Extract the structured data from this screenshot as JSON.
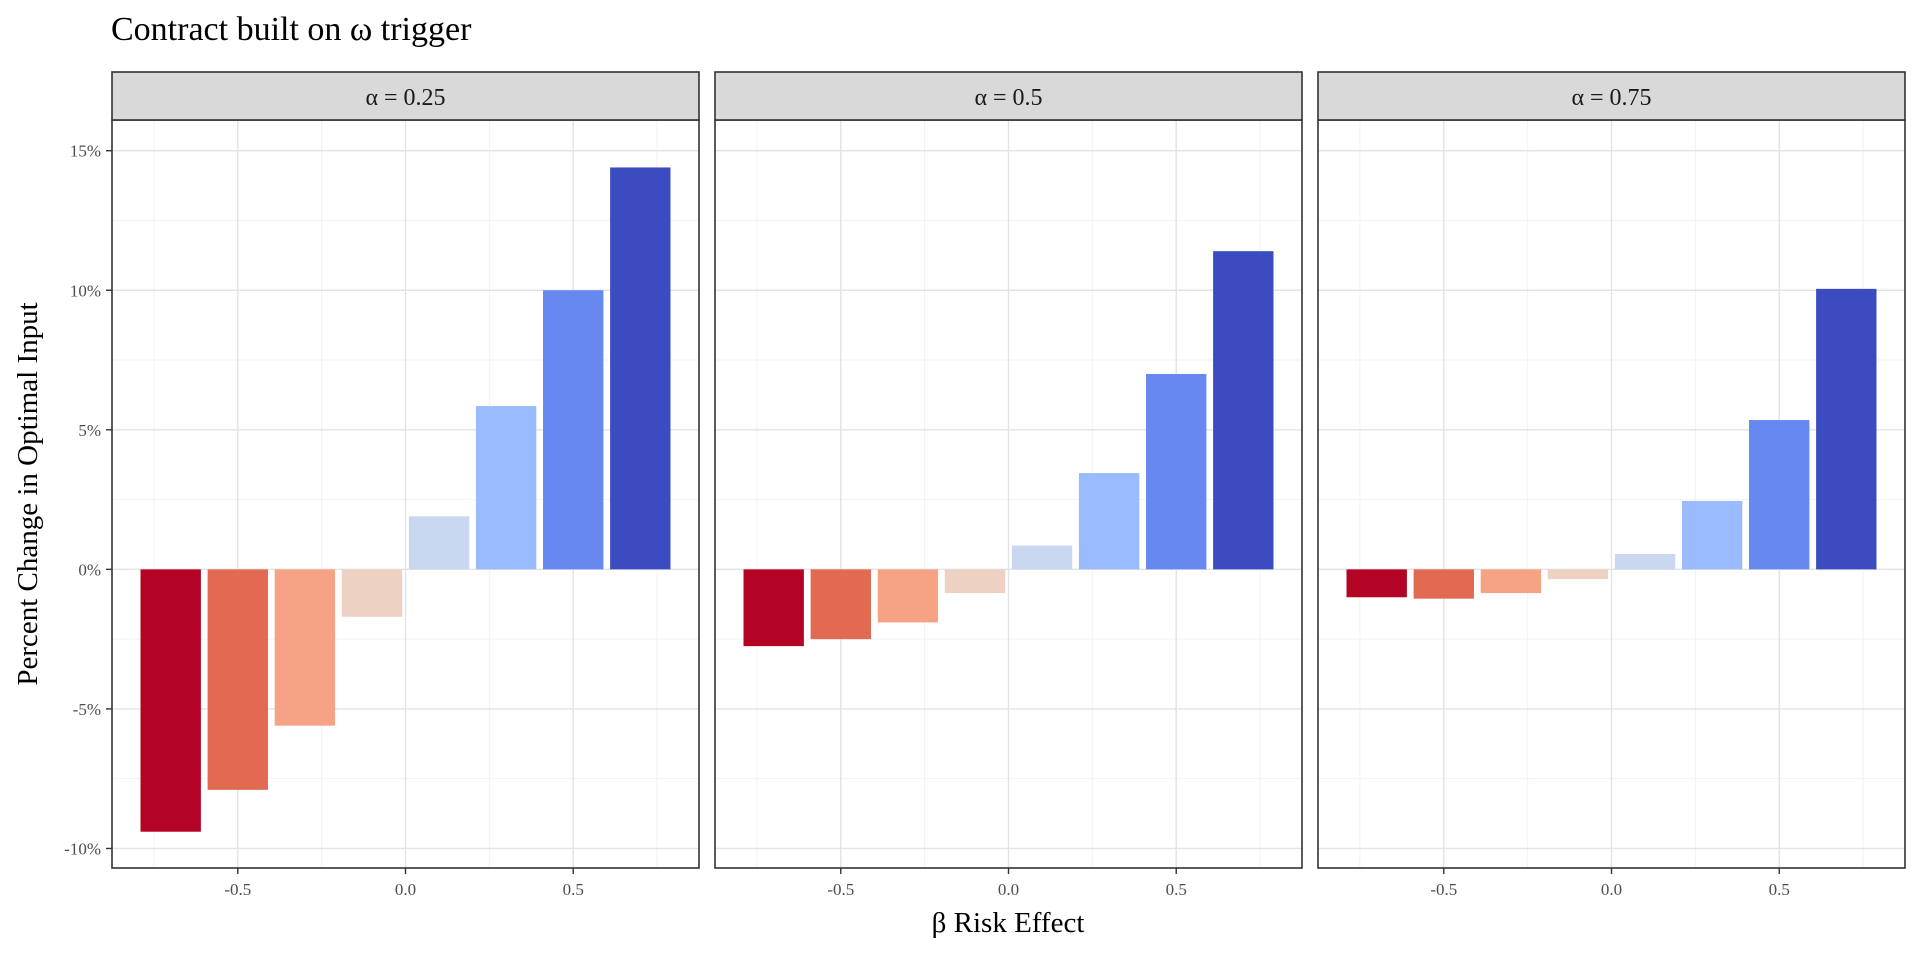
{
  "chart_data": {
    "type": "bar",
    "title": "Contract built on ω trigger",
    "xlabel": "β Risk Effect",
    "ylabel": "Percent Change in Optimal Input",
    "ylim": [
      -10.7,
      16.1
    ],
    "xlim": [
      -0.875,
      0.875
    ],
    "y_ticks": [
      -10,
      -5,
      0,
      5,
      10,
      15
    ],
    "y_tick_labels": [
      "-10%",
      "-5%",
      "0%",
      "5%",
      "10%",
      "15%"
    ],
    "x_ticks": [
      -0.5,
      0.0,
      0.5
    ],
    "x_tick_labels": [
      "-0.5",
      "0.0",
      "0.5"
    ],
    "grid": true,
    "legend": "none",
    "bar_width": 0.18,
    "x": [
      -0.7,
      -0.5,
      -0.3,
      -0.1,
      0.1,
      0.3,
      0.5,
      0.7
    ],
    "colors": [
      "#B40426",
      "#E26952",
      "#F6A385",
      "#EDD1C2",
      "#C9D7F0",
      "#9ABBFF",
      "#6788EE",
      "#3B4CC0"
    ],
    "panels": [
      {
        "label": "α = 0.25",
        "values": [
          -9.4,
          -7.9,
          -5.6,
          -1.7,
          1.9,
          5.85,
          10.0,
          14.4
        ]
      },
      {
        "label": "α = 0.5",
        "values": [
          -2.75,
          -2.5,
          -1.9,
          -0.85,
          0.85,
          3.45,
          7.0,
          11.4
        ]
      },
      {
        "label": "α = 0.75",
        "values": [
          -1.0,
          -1.05,
          -0.85,
          -0.35,
          0.55,
          2.45,
          5.35,
          10.05
        ]
      }
    ]
  }
}
